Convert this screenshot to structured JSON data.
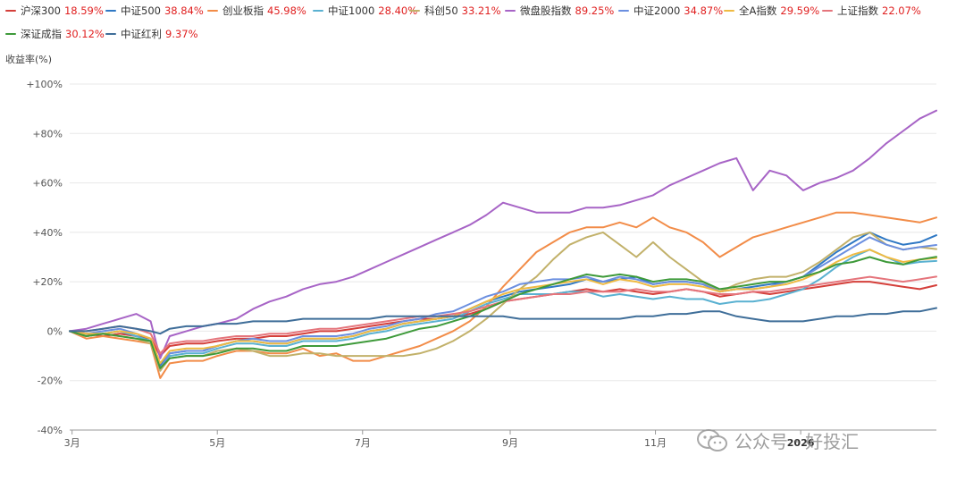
{
  "chart_data": {
    "type": "line",
    "ylabel": "收益率(%)",
    "ylim": [
      -40,
      100
    ],
    "y_ticks": [
      "+100%",
      "+80%",
      "+60%",
      "+40%",
      "+20%",
      "0%",
      "-20%",
      "-40%"
    ],
    "x_ticks": [
      "3月",
      "5月",
      "7月",
      "9月",
      "11月",
      "2026"
    ],
    "x": [
      "2025-02-28",
      "2025-03-07",
      "2025-03-14",
      "2025-03-21",
      "2025-03-28",
      "2025-04-03",
      "2025-04-07",
      "2025-04-11",
      "2025-04-18",
      "2025-04-25",
      "2025-05-01",
      "2025-05-09",
      "2025-05-16",
      "2025-05-23",
      "2025-05-30",
      "2025-06-06",
      "2025-06-13",
      "2025-06-20",
      "2025-06-27",
      "2025-07-04",
      "2025-07-11",
      "2025-07-18",
      "2025-07-25",
      "2025-08-01",
      "2025-08-08",
      "2025-08-15",
      "2025-08-22",
      "2025-08-29",
      "2025-09-05",
      "2025-09-12",
      "2025-09-19",
      "2025-09-26",
      "2025-10-03",
      "2025-10-10",
      "2025-10-17",
      "2025-10-24",
      "2025-10-31",
      "2025-11-07",
      "2025-11-14",
      "2025-11-21",
      "2025-11-28",
      "2025-12-05",
      "2025-12-12",
      "2025-12-19",
      "2025-12-26",
      "2026-01-02",
      "2026-01-09",
      "2026-01-16",
      "2026-01-23",
      "2026-01-30",
      "2026-02-06",
      "2026-02-13",
      "2026-02-20",
      "2026-02-27"
    ],
    "grid": true,
    "legend_position": "top",
    "series": [
      {
        "name": "沪深300",
        "return": "18.59%",
        "color": "#d43f3a",
        "values": [
          0,
          -1,
          -2,
          -1,
          -2,
          -3,
          -10,
          -6,
          -5,
          -5,
          -4,
          -3,
          -3,
          -2,
          -2,
          -1,
          0,
          0,
          1,
          2,
          3,
          4,
          5,
          5,
          6,
          7,
          9,
          12,
          13,
          14,
          15,
          16,
          17,
          16,
          17,
          16,
          15,
          16,
          17,
          16,
          14,
          15,
          16,
          15,
          16,
          17,
          18,
          19,
          20,
          20,
          19,
          18,
          17,
          18.59
        ]
      },
      {
        "name": "中证500",
        "return": "38.84%",
        "color": "#2f78c4",
        "values": [
          0,
          -2,
          -1,
          0,
          -2,
          -4,
          -14,
          -9,
          -8,
          -8,
          -6,
          -4,
          -4,
          -5,
          -5,
          -3,
          -3,
          -3,
          -2,
          0,
          1,
          3,
          4,
          5,
          6,
          9,
          12,
          14,
          16,
          17,
          18,
          19,
          21,
          20,
          21,
          22,
          19,
          20,
          20,
          19,
          16,
          17,
          18,
          19,
          20,
          22,
          27,
          32,
          36,
          40,
          37,
          35,
          36,
          38.84
        ]
      },
      {
        "name": "创业板指",
        "return": "45.98%",
        "color": "#f28c48",
        "values": [
          0,
          -3,
          -2,
          -3,
          -4,
          -5,
          -19,
          -13,
          -12,
          -12,
          -10,
          -8,
          -8,
          -9,
          -9,
          -7,
          -10,
          -9,
          -12,
          -12,
          -10,
          -8,
          -6,
          -3,
          0,
          4,
          10,
          18,
          25,
          32,
          36,
          40,
          42,
          42,
          44,
          42,
          46,
          42,
          40,
          36,
          30,
          34,
          38,
          40,
          42,
          44,
          46,
          48,
          48,
          47,
          46,
          45,
          44,
          45.98
        ]
      },
      {
        "name": "中证1000",
        "return": "28.40%",
        "color": "#5ab1d1",
        "values": [
          0,
          -2,
          -1,
          0,
          -2,
          -4,
          -16,
          -10,
          -9,
          -9,
          -7,
          -5,
          -5,
          -6,
          -6,
          -4,
          -4,
          -4,
          -3,
          -1,
          0,
          2,
          3,
          4,
          5,
          8,
          11,
          13,
          15,
          15,
          15,
          16,
          16,
          14,
          15,
          14,
          13,
          14,
          13,
          13,
          11,
          12,
          12,
          13,
          15,
          17,
          21,
          26,
          30,
          33,
          30,
          27,
          28,
          28.4
        ]
      },
      {
        "name": "科创50",
        "return": "33.21%",
        "color": "#c2b16a",
        "values": [
          0,
          -2,
          -1,
          -2,
          -3,
          -5,
          -16,
          -11,
          -10,
          -10,
          -8,
          -7,
          -8,
          -10,
          -10,
          -9,
          -9,
          -10,
          -10,
          -10,
          -10,
          -10,
          -9,
          -7,
          -4,
          0,
          5,
          11,
          17,
          22,
          29,
          35,
          38,
          40,
          35,
          30,
          36,
          30,
          25,
          20,
          16,
          19,
          21,
          22,
          22,
          24,
          28,
          33,
          38,
          40,
          35,
          33,
          34,
          33.21
        ]
      },
      {
        "name": "微盘股指数",
        "return": "89.25%",
        "color": "#a764c6",
        "values": [
          0,
          1,
          3,
          5,
          7,
          4,
          -11,
          -2,
          0,
          2,
          3,
          5,
          9,
          12,
          14,
          17,
          19,
          20,
          22,
          25,
          28,
          31,
          34,
          37,
          40,
          43,
          47,
          52,
          50,
          48,
          48,
          48,
          50,
          50,
          51,
          53,
          55,
          59,
          62,
          65,
          68,
          70,
          57,
          65,
          63,
          57,
          60,
          62,
          65,
          70,
          76,
          81,
          86,
          89.25
        ]
      },
      {
        "name": "中证2000",
        "return": "34.87%",
        "color": "#6b8fe0",
        "values": [
          0,
          -1,
          0,
          1,
          -1,
          -3,
          -15,
          -9,
          -8,
          -8,
          -6,
          -4,
          -3,
          -4,
          -4,
          -2,
          -2,
          -2,
          -1,
          1,
          2,
          4,
          5,
          7,
          8,
          11,
          14,
          16,
          19,
          20,
          21,
          21,
          22,
          20,
          22,
          21,
          19,
          20,
          20,
          19,
          16,
          17,
          17,
          18,
          20,
          22,
          26,
          30,
          34,
          38,
          35,
          33,
          34,
          34.87
        ]
      },
      {
        "name": "全A指数",
        "return": "29.59%",
        "color": "#efba42",
        "values": [
          0,
          -1,
          -1,
          0,
          -1,
          -3,
          -13,
          -8,
          -7,
          -7,
          -6,
          -4,
          -4,
          -5,
          -5,
          -3,
          -3,
          -3,
          -2,
          0,
          1,
          3,
          4,
          5,
          6,
          9,
          12,
          15,
          17,
          18,
          19,
          20,
          21,
          19,
          21,
          20,
          18,
          19,
          19,
          18,
          16,
          17,
          17,
          18,
          19,
          21,
          24,
          28,
          31,
          33,
          30,
          28,
          29,
          29.59
        ]
      },
      {
        "name": "上证指数",
        "return": "22.07%",
        "color": "#e5757c",
        "values": [
          0,
          0,
          1,
          2,
          1,
          -1,
          -9,
          -5,
          -4,
          -4,
          -3,
          -2,
          -2,
          -1,
          -1,
          0,
          1,
          1,
          2,
          3,
          4,
          5,
          6,
          6,
          7,
          8,
          10,
          12,
          13,
          14,
          15,
          15,
          16,
          16,
          16,
          17,
          16,
          16,
          17,
          16,
          15,
          15,
          16,
          16,
          17,
          18,
          19,
          20,
          21,
          22,
          21,
          20,
          21,
          22.07
        ]
      },
      {
        "name": "深证成指",
        "return": "30.12%",
        "color": "#3e9a3a",
        "values": [
          0,
          -2,
          -1,
          -2,
          -3,
          -4,
          -15,
          -11,
          -10,
          -10,
          -9,
          -7,
          -7,
          -8,
          -8,
          -6,
          -6,
          -6,
          -5,
          -4,
          -3,
          -1,
          1,
          2,
          4,
          6,
          9,
          12,
          15,
          17,
          19,
          21,
          23,
          22,
          23,
          22,
          20,
          21,
          21,
          20,
          17,
          18,
          19,
          20,
          20,
          22,
          24,
          27,
          28,
          30,
          28,
          27,
          29,
          30.12
        ]
      },
      {
        "name": "中证红利",
        "return": "9.37%",
        "color": "#3f6e99",
        "values": [
          0,
          0,
          1,
          2,
          1,
          0,
          -1,
          1,
          2,
          2,
          3,
          3,
          4,
          4,
          4,
          5,
          5,
          5,
          5,
          5,
          6,
          6,
          6,
          6,
          6,
          6,
          6,
          6,
          5,
          5,
          5,
          5,
          5,
          5,
          5,
          6,
          6,
          7,
          7,
          8,
          8,
          6,
          5,
          4,
          4,
          4,
          5,
          6,
          6,
          7,
          7,
          8,
          8,
          9.37
        ]
      }
    ]
  },
  "watermark": {
    "icon": "wechat-icon",
    "text": "公众号 · 好投汇"
  }
}
